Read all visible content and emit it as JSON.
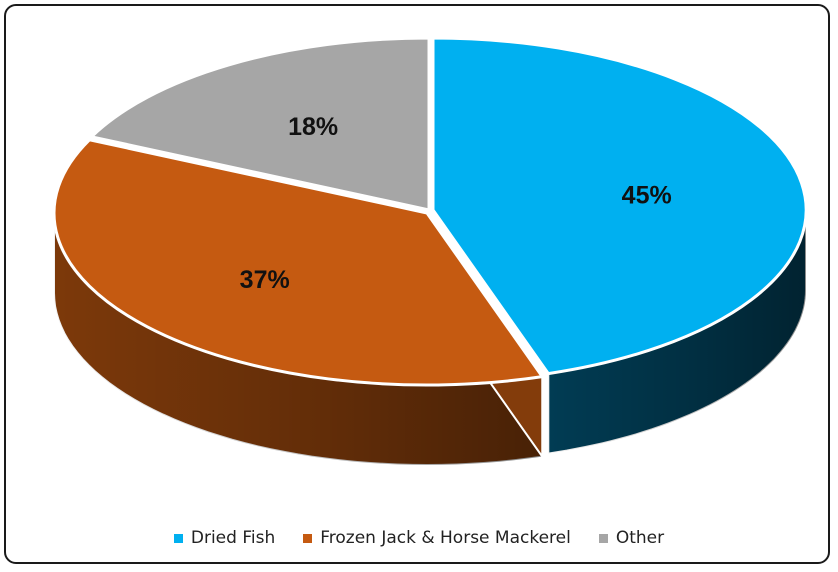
{
  "chart_data": {
    "type": "pie",
    "three_d": true,
    "title": "",
    "slices": [
      {
        "label": "Dried Fish",
        "value": 45,
        "value_label": "45%",
        "color": "#00B0F0",
        "side_color": "#013F58"
      },
      {
        "label": "Frozen Jack & Horse Mackerel",
        "value": 37,
        "value_label": "37%",
        "color": "#C55A11",
        "side_color": "#833C0B"
      },
      {
        "label": "Other",
        "value": 18,
        "value_label": "18%",
        "color": "#A6A6A6",
        "side_color": "#6E6E6E"
      }
    ],
    "legend_position": "bottom",
    "start_angle": "12 o'clock, clockwise"
  }
}
